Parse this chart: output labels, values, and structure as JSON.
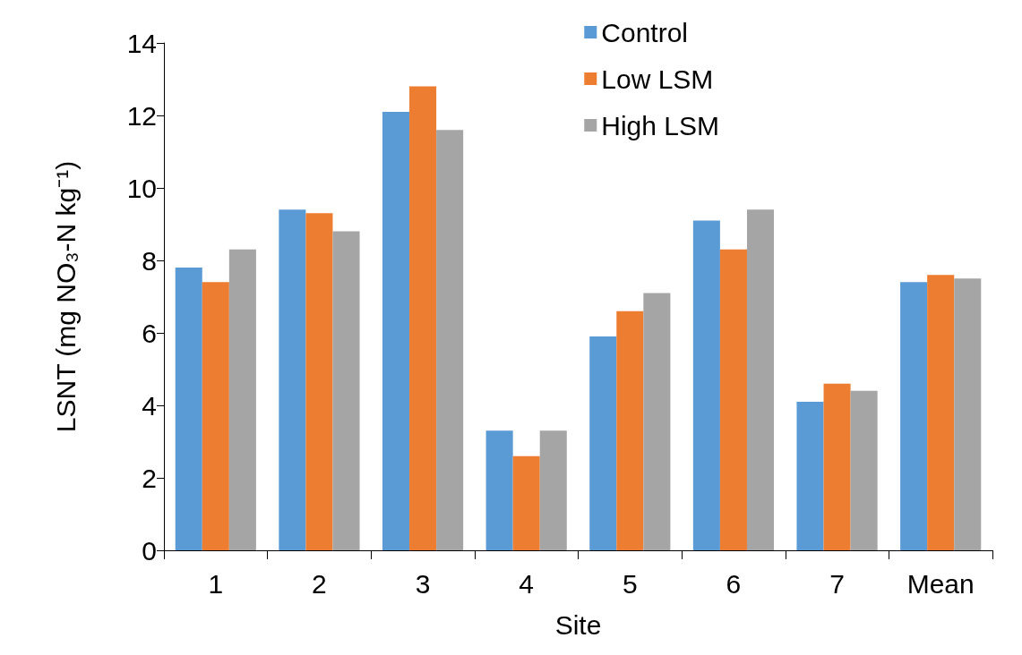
{
  "chart_data": {
    "type": "bar",
    "xlabel": "Site",
    "ylabel": "LSNT (mg NO₃-N kg⁻¹)",
    "categories": [
      "1",
      "2",
      "3",
      "4",
      "5",
      "6",
      "7",
      "Mean"
    ],
    "series": [
      {
        "name": "Control",
        "color": "#5b9bd5",
        "values": [
          7.8,
          9.4,
          12.1,
          3.3,
          5.9,
          9.1,
          4.1,
          7.4
        ]
      },
      {
        "name": "Low LSM",
        "color": "#ed7d31",
        "values": [
          7.4,
          9.3,
          12.8,
          2.6,
          6.6,
          8.3,
          4.6,
          7.6
        ]
      },
      {
        "name": "High LSM",
        "color": "#a5a5a5",
        "values": [
          8.3,
          8.8,
          11.6,
          3.3,
          7.1,
          9.4,
          4.4,
          7.5
        ]
      }
    ],
    "ylim": [
      0,
      14
    ],
    "yticks": [
      0,
      2,
      4,
      6,
      8,
      10,
      12,
      14
    ],
    "grid": false,
    "legend": "top right"
  }
}
